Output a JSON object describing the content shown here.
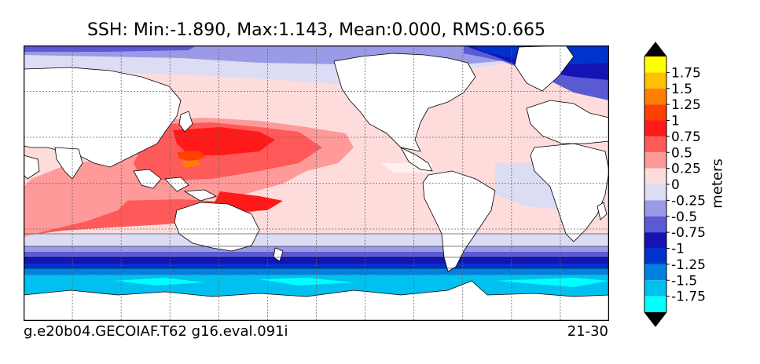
{
  "chart_data": {
    "type": "heatmap",
    "title": "SSH: Min:-1.890, Max:1.143, Mean:0.000, RMS:0.665",
    "footer_left": "g.e20b04.GECOIAF.T62 g16.eval.091i",
    "footer_right": "21-30",
    "stats": {
      "min": -1.89,
      "max": 1.143,
      "mean": 0.0,
      "rms": 0.665
    },
    "colorbar": {
      "label": "meters",
      "ticks": [
        "1.75",
        "1.5",
        "1.25",
        "1",
        "0.75",
        "0.5",
        "0.25",
        "0",
        "-0.25",
        "-0.5",
        "-0.75",
        "-1",
        "-1.25",
        "-1.5",
        "-1.75"
      ],
      "levels": [
        {
          "lo": 1.75,
          "hi": 2.0,
          "color": "#ffff00"
        },
        {
          "lo": 1.5,
          "hi": 1.75,
          "color": "#ffc000"
        },
        {
          "lo": 1.25,
          "hi": 1.5,
          "color": "#ff8000"
        },
        {
          "lo": 1.0,
          "hi": 1.25,
          "color": "#ff4000"
        },
        {
          "lo": 0.75,
          "hi": 1.0,
          "color": "#ff1a1a"
        },
        {
          "lo": 0.5,
          "hi": 0.75,
          "color": "#ff5a5a"
        },
        {
          "lo": 0.25,
          "hi": 0.5,
          "color": "#ff9a9a"
        },
        {
          "lo": 0.0,
          "hi": 0.25,
          "color": "#ffdcdc"
        },
        {
          "lo": -0.25,
          "hi": 0.0,
          "color": "#dcdcf5"
        },
        {
          "lo": -0.5,
          "hi": -0.25,
          "color": "#9a9ae6"
        },
        {
          "lo": -0.75,
          "hi": -0.5,
          "color": "#5a5ad2"
        },
        {
          "lo": -1.0,
          "hi": -0.75,
          "color": "#1414b4"
        },
        {
          "lo": -1.25,
          "hi": -1.0,
          "color": "#0033cc"
        },
        {
          "lo": -1.5,
          "hi": -1.25,
          "color": "#0080e0"
        },
        {
          "lo": -1.75,
          "hi": -1.5,
          "color": "#00c0f0"
        },
        {
          "lo": -2.0,
          "hi": -1.75,
          "color": "#00ffff"
        }
      ],
      "over_color": "#000000",
      "under_color": "#000000"
    },
    "land_color": "#ffffff",
    "grid": true
  }
}
